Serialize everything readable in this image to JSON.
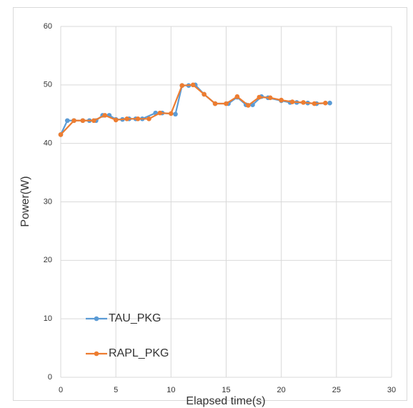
{
  "chart_data": {
    "type": "scatter-line",
    "xlabel": "Elapsed time(s)",
    "ylabel": "Power(W)",
    "xlim": [
      0,
      30
    ],
    "ylim": [
      0,
      60
    ],
    "xticks": [
      0,
      5,
      10,
      15,
      20,
      25,
      30
    ],
    "yticks": [
      0,
      10,
      20,
      30,
      40,
      50,
      60
    ],
    "grid": true,
    "legend": "lower left",
    "series": [
      {
        "name": "TAU_PKG",
        "color": "#5b9bd5",
        "x": [
          0,
          0.6,
          1.2,
          2.0,
          2.6,
          3.2,
          3.8,
          4.4,
          5.0,
          5.6,
          6.2,
          6.8,
          7.4,
          8.6,
          9.2,
          10.4,
          11.0,
          11.6,
          12.2,
          13.0,
          14.0,
          15.2,
          16.0,
          16.8,
          17.4,
          18.2,
          18.8,
          20.0,
          20.8,
          21.4,
          22.4,
          23.2,
          24.4
        ],
        "values": [
          41.5,
          43.9,
          43.9,
          43.9,
          43.9,
          43.9,
          44.8,
          44.8,
          44.1,
          44.1,
          44.2,
          44.2,
          44.2,
          45.2,
          45.2,
          45.0,
          49.9,
          49.9,
          50.0,
          48.4,
          46.8,
          46.8,
          47.9,
          46.6,
          46.6,
          48.0,
          47.8,
          47.3,
          47.0,
          47.0,
          46.9,
          46.8,
          46.9
        ]
      },
      {
        "name": "RAPL_PKG",
        "color": "#ed7d31",
        "x": [
          0,
          1.2,
          2.0,
          3.0,
          4.0,
          5.0,
          6.0,
          7.0,
          8.0,
          9.0,
          10.0,
          11.0,
          12.0,
          13.0,
          14.0,
          15.0,
          16.0,
          17.0,
          18.0,
          19.0,
          20.0,
          21.0,
          22.0,
          23.0,
          24.0
        ],
        "values": [
          41.5,
          43.9,
          43.9,
          43.9,
          44.8,
          44.0,
          44.2,
          44.2,
          44.2,
          45.2,
          45.1,
          49.9,
          50.0,
          48.4,
          46.8,
          46.8,
          48.0,
          46.5,
          47.9,
          47.8,
          47.4,
          47.1,
          47.0,
          46.8,
          46.9
        ]
      }
    ]
  }
}
